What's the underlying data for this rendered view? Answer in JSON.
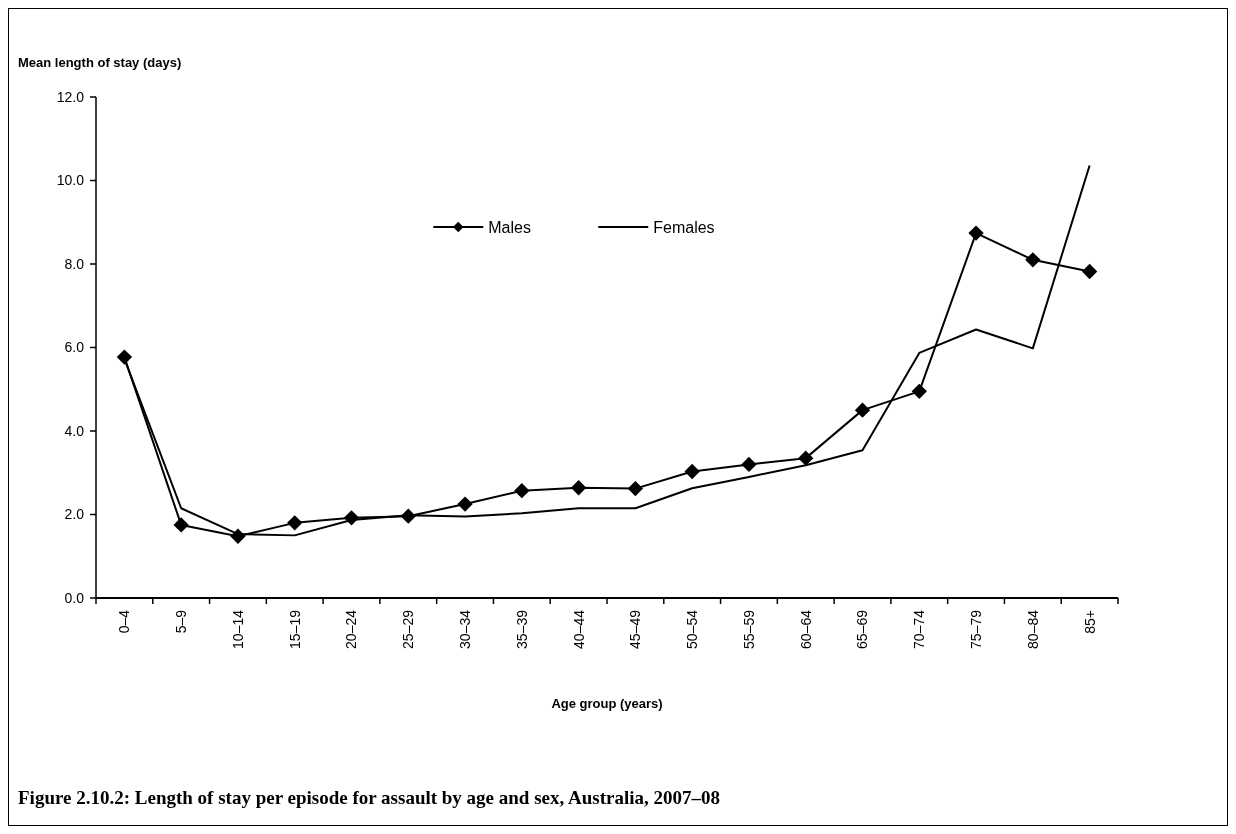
{
  "chart_data": {
    "type": "line",
    "title": "Figure 2.10.2: Length of stay per episode for assault by age and sex, Australia, 2007–08",
    "xlabel": "Age group (years)",
    "ylabel": "Mean length of stay (days)",
    "categories": [
      "0–4",
      "5–9",
      "10–14",
      "15–19",
      "20–24",
      "25–29",
      "30–34",
      "35–39",
      "40–44",
      "45–49",
      "50–54",
      "55–59",
      "60–64",
      "65–69",
      "70–74",
      "75–79",
      "80–84",
      "85+"
    ],
    "series": [
      {
        "name": "Males",
        "color": "#000000",
        "marker": "diamond",
        "values": [
          5.77,
          1.75,
          1.48,
          1.8,
          1.92,
          1.96,
          2.25,
          2.57,
          2.64,
          2.62,
          3.03,
          3.2,
          3.35,
          4.5,
          4.95,
          8.74,
          8.1,
          7.82
        ]
      },
      {
        "name": "Females",
        "color": "#000000",
        "marker": "none",
        "values": [
          5.73,
          2.15,
          1.53,
          1.5,
          1.87,
          1.98,
          1.95,
          2.03,
          2.15,
          2.15,
          2.63,
          2.9,
          3.18,
          3.54,
          5.87,
          6.43,
          5.98,
          10.36
        ]
      }
    ],
    "ylim": [
      0,
      12
    ],
    "yticks": [
      {
        "value": 0,
        "label": "0.0"
      },
      {
        "value": 2,
        "label": "2.0"
      },
      {
        "value": 4,
        "label": "4.0"
      },
      {
        "value": 6,
        "label": "6.0"
      },
      {
        "value": 8,
        "label": "8.0"
      },
      {
        "value": 10,
        "label": "10.0"
      },
      {
        "value": 12,
        "label": "12.0"
      }
    ],
    "legend": "top",
    "grid": false
  }
}
